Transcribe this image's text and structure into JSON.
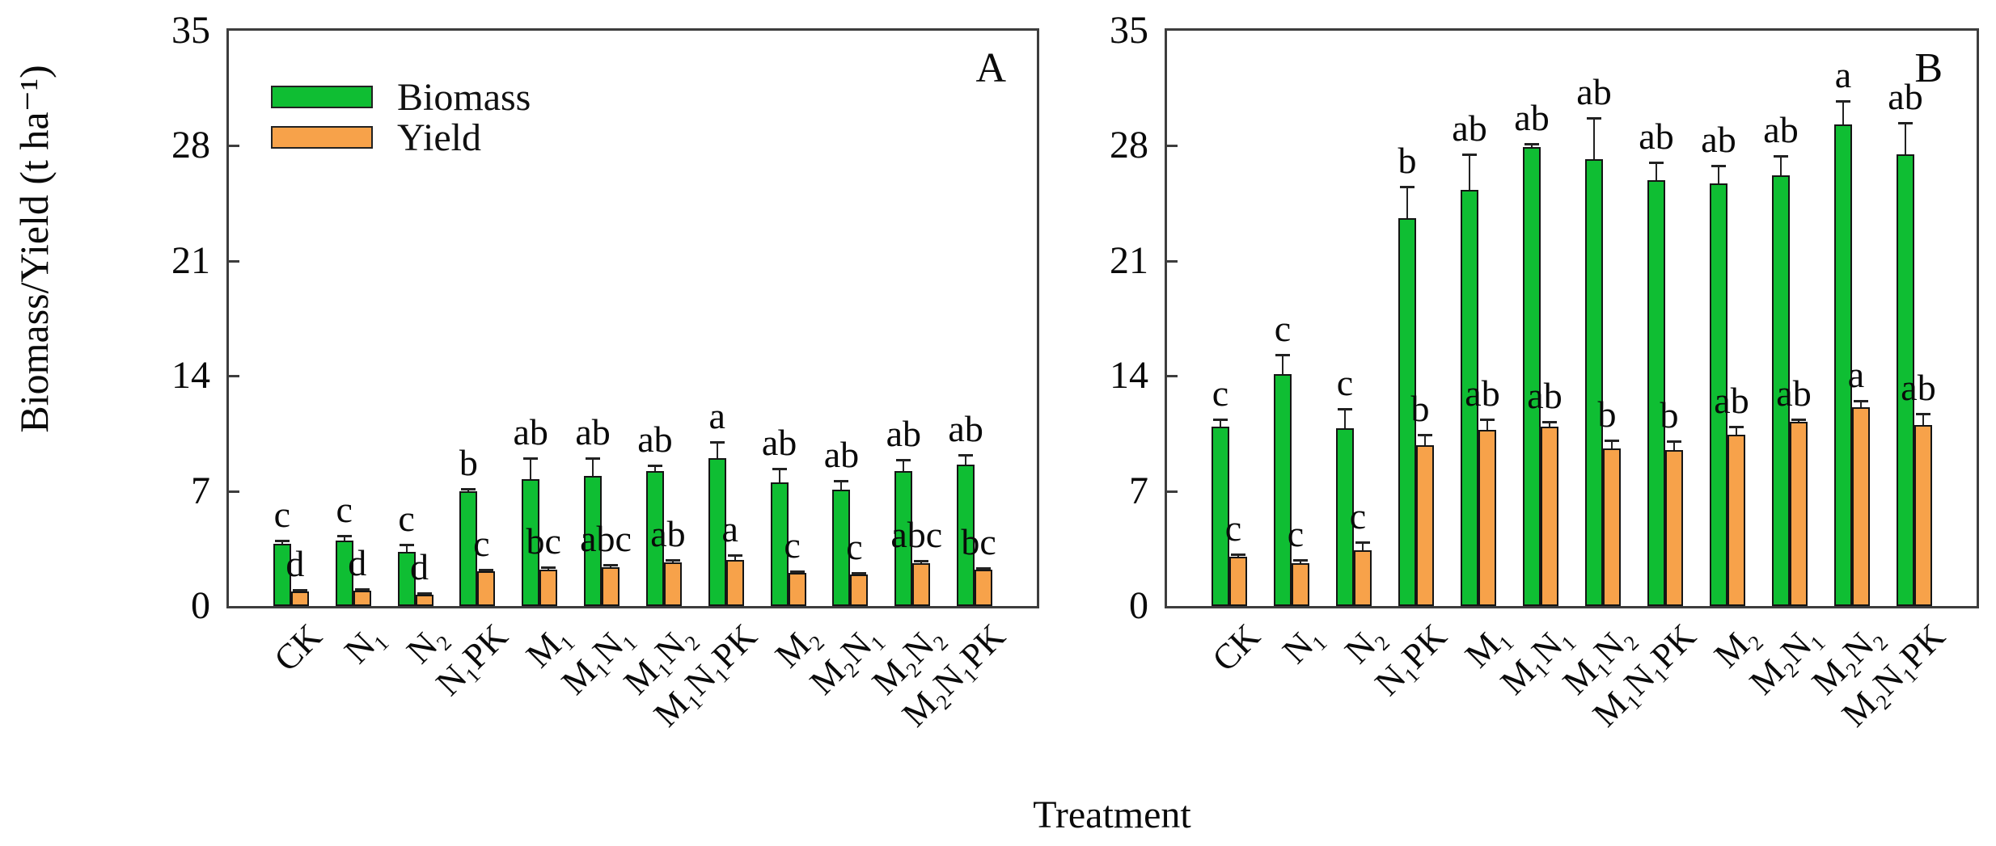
{
  "figure": {
    "y_axis_title": "Biomass/Yield (t ha⁻¹)",
    "x_axis_title": "Treatment",
    "legend": [
      {
        "label": "Biomass",
        "color": "#0fbe33"
      },
      {
        "label": "Yield",
        "color": "#f7a24a"
      }
    ],
    "colors": {
      "biomass": "#0fbe33",
      "yield": "#f7a24a",
      "axis": "#3d3d3d"
    }
  },
  "chart_data": [
    {
      "type": "bar",
      "panel_label": "A",
      "title": "",
      "xlabel": "Treatment",
      "ylabel": "Biomass/Yield (t ha⁻¹)",
      "ylim": [
        0,
        35
      ],
      "yticks": [
        0,
        7,
        14,
        21,
        28,
        35
      ],
      "legend_position": "upper-left",
      "grid": false,
      "categories": [
        "CK",
        "N₁",
        "N₂",
        "N₁PK",
        "M₁",
        "M₁N₁",
        "M₁N₂",
        "M₁N₁PK",
        "M₂",
        "M₂N₁",
        "M₂N₂",
        "M₂N₁PK"
      ],
      "series": [
        {
          "name": "Biomass",
          "color": "#0fbe33",
          "values": [
            3.8,
            4.0,
            3.3,
            7.0,
            7.7,
            7.9,
            8.2,
            9.0,
            7.5,
            7.1,
            8.2,
            8.6
          ],
          "errors": [
            0.2,
            0.3,
            0.45,
            0.15,
            1.3,
            1.1,
            0.35,
            1.0,
            0.85,
            0.5,
            0.7,
            0.6
          ],
          "letters": [
            "c",
            "c",
            "c",
            "b",
            "ab",
            "ab",
            "ab",
            "a",
            "ab",
            "ab",
            "ab",
            "ab"
          ]
        },
        {
          "name": "Yield",
          "color": "#f7a24a",
          "values": [
            0.9,
            0.95,
            0.7,
            2.1,
            2.2,
            2.35,
            2.65,
            2.8,
            2.0,
            1.9,
            2.6,
            2.2
          ],
          "errors": [
            0.1,
            0.1,
            0.1,
            0.1,
            0.15,
            0.15,
            0.15,
            0.3,
            0.1,
            0.1,
            0.15,
            0.1
          ],
          "letters": [
            "d",
            "d",
            "d",
            "c",
            "bc",
            "abc",
            "ab",
            "a",
            "c",
            "c",
            "abc",
            "bc"
          ]
        }
      ]
    },
    {
      "type": "bar",
      "panel_label": "B",
      "title": "",
      "xlabel": "Treatment",
      "ylabel": "Biomass/Yield (t ha⁻¹)",
      "ylim": [
        0,
        35
      ],
      "yticks": [
        0,
        7,
        14,
        21,
        28,
        35
      ],
      "legend_position": "none",
      "grid": false,
      "categories": [
        "CK",
        "N₁",
        "N₂",
        "N₁PK",
        "M₁",
        "M₁N₁",
        "M₁N₂",
        "M₁N₁PK",
        "M₂",
        "M₂N₁",
        "M₂N₂",
        "M₂N₁PK"
      ],
      "series": [
        {
          "name": "Biomass",
          "color": "#0fbe33",
          "values": [
            10.9,
            14.1,
            10.8,
            23.6,
            25.3,
            27.9,
            27.2,
            25.9,
            25.7,
            26.2,
            29.3,
            27.5
          ],
          "errors": [
            0.45,
            1.2,
            1.2,
            1.9,
            2.2,
            0.2,
            2.5,
            1.1,
            1.1,
            1.2,
            1.4,
            1.9
          ],
          "letters": [
            "c",
            "c",
            "c",
            "b",
            "ab",
            "ab",
            "ab",
            "ab",
            "ab",
            "ab",
            "a",
            "ab"
          ]
        },
        {
          "name": "Yield",
          "color": "#f7a24a",
          "values": [
            3.0,
            2.6,
            3.4,
            9.8,
            10.7,
            10.9,
            9.6,
            9.5,
            10.4,
            11.2,
            12.1,
            11.0
          ],
          "errors": [
            0.15,
            0.2,
            0.5,
            0.6,
            0.65,
            0.3,
            0.5,
            0.55,
            0.5,
            0.15,
            0.4,
            0.7
          ],
          "letters": [
            "c",
            "c",
            "c",
            "b",
            "ab",
            "ab",
            "b",
            "b",
            "ab",
            "ab",
            "a",
            "ab"
          ]
        }
      ]
    }
  ]
}
